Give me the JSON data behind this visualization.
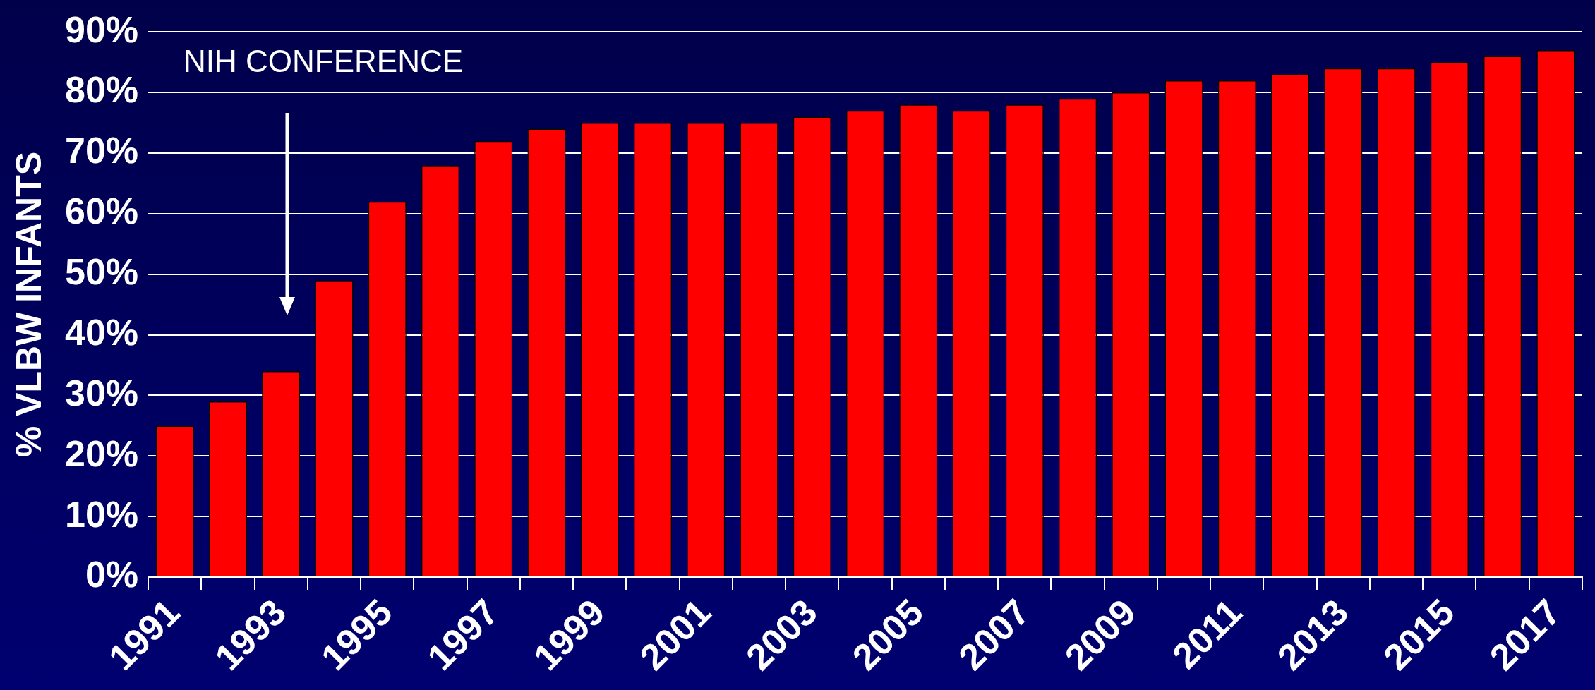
{
  "chart_data": {
    "type": "bar",
    "ylabel": "% VLBW INFANTS",
    "categories": [
      "1991",
      null,
      "1993",
      null,
      "1995",
      null,
      "1997",
      null,
      "1999",
      null,
      "2001",
      null,
      "2003",
      null,
      "2005",
      null,
      "2007",
      null,
      "2009",
      null,
      "2011",
      null,
      "2013",
      null,
      "2015",
      null,
      "2017"
    ],
    "values": [
      25,
      29,
      34,
      49,
      62,
      68,
      72,
      74,
      75,
      75,
      75,
      75,
      76,
      77,
      78,
      77,
      78,
      79,
      80,
      82,
      82,
      83,
      84,
      84,
      85,
      86,
      87
    ],
    "color": "#ff0000",
    "ylim": [
      0,
      90
    ],
    "yticks": [
      {
        "value": 0,
        "label": "0%"
      },
      {
        "value": 10,
        "label": "10%"
      },
      {
        "value": 20,
        "label": "20%"
      },
      {
        "value": 30,
        "label": "30%"
      },
      {
        "value": 40,
        "label": "40%"
      },
      {
        "value": 50,
        "label": "50%"
      },
      {
        "value": 60,
        "label": "60%"
      },
      {
        "value": 70,
        "label": "70%"
      },
      {
        "value": 80,
        "label": "80%"
      },
      {
        "value": 90,
        "label": "90%"
      }
    ],
    "grid": "y",
    "annotations": [
      "NIH CONFERENCE"
    ]
  }
}
